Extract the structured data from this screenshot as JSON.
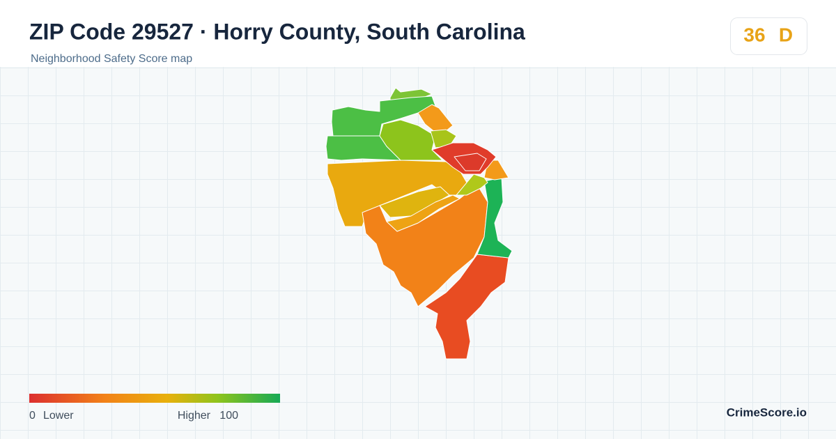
{
  "header": {
    "title": "ZIP Code 29527 · Horry County, South Carolina",
    "subtitle": "Neighborhood Safety Score map"
  },
  "score": {
    "value": "36",
    "grade": "D"
  },
  "legend": {
    "min": "0",
    "low_label": "Lower",
    "high_label": "Higher",
    "max": "100"
  },
  "brand": "CrimeScore.io"
}
